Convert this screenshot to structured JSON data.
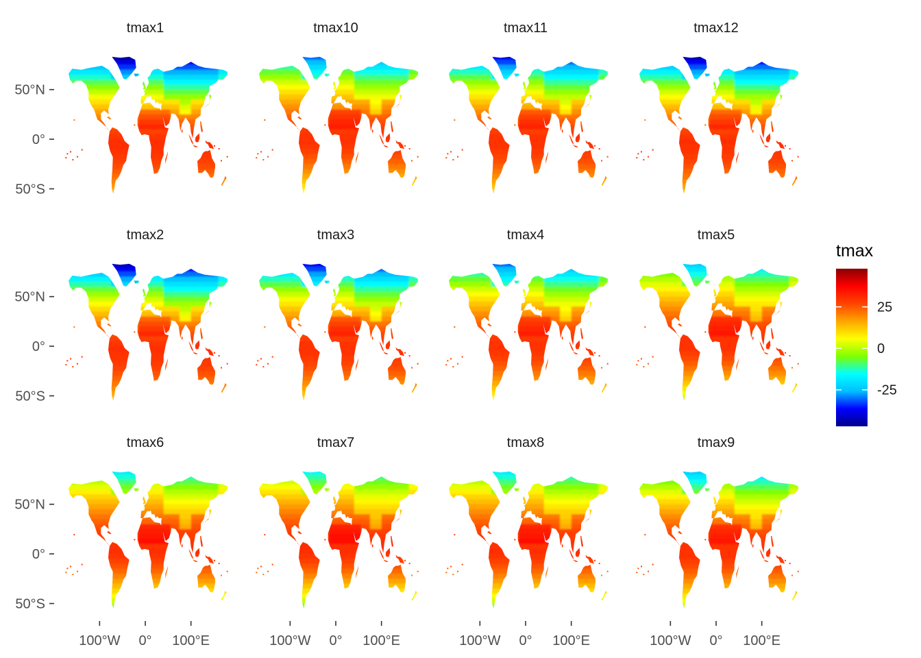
{
  "chart_data": {
    "type": "heatmap",
    "facet_titles": [
      "tmax1",
      "tmax10",
      "tmax11",
      "tmax12",
      "tmax2",
      "tmax3",
      "tmax4",
      "tmax5",
      "tmax6",
      "tmax7",
      "tmax8",
      "tmax9"
    ],
    "facet_months": [
      1,
      10,
      11,
      12,
      2,
      3,
      4,
      5,
      6,
      7,
      8,
      9
    ],
    "layout": "3 rows x 4 columns",
    "y_ticks": [
      {
        "value": 50,
        "label": "50°N"
      },
      {
        "value": 0,
        "label": "0°"
      },
      {
        "value": -50,
        "label": "50°S"
      }
    ],
    "x_ticks": [
      {
        "value": -100,
        "label": "100°W"
      },
      {
        "value": 0,
        "label": "0°"
      },
      {
        "value": 100,
        "label": "100°E"
      }
    ],
    "xlim": [
      -180,
      180
    ],
    "ylim": [
      -60,
      85
    ],
    "legend": {
      "title": "tmax",
      "position": "right",
      "range": [
        -47,
        48
      ],
      "ticks": [
        {
          "value": 25,
          "label": "25"
        },
        {
          "value": 0,
          "label": "0"
        },
        {
          "value": -25,
          "label": "-25"
        }
      ],
      "colors": [
        "#00008b",
        "#0000ff",
        "#00bfff",
        "#00ffff",
        "#7fff00",
        "#ffff00",
        "#ffa500",
        "#ff4500",
        "#ff0000",
        "#8b0000"
      ]
    },
    "grid": false
  }
}
